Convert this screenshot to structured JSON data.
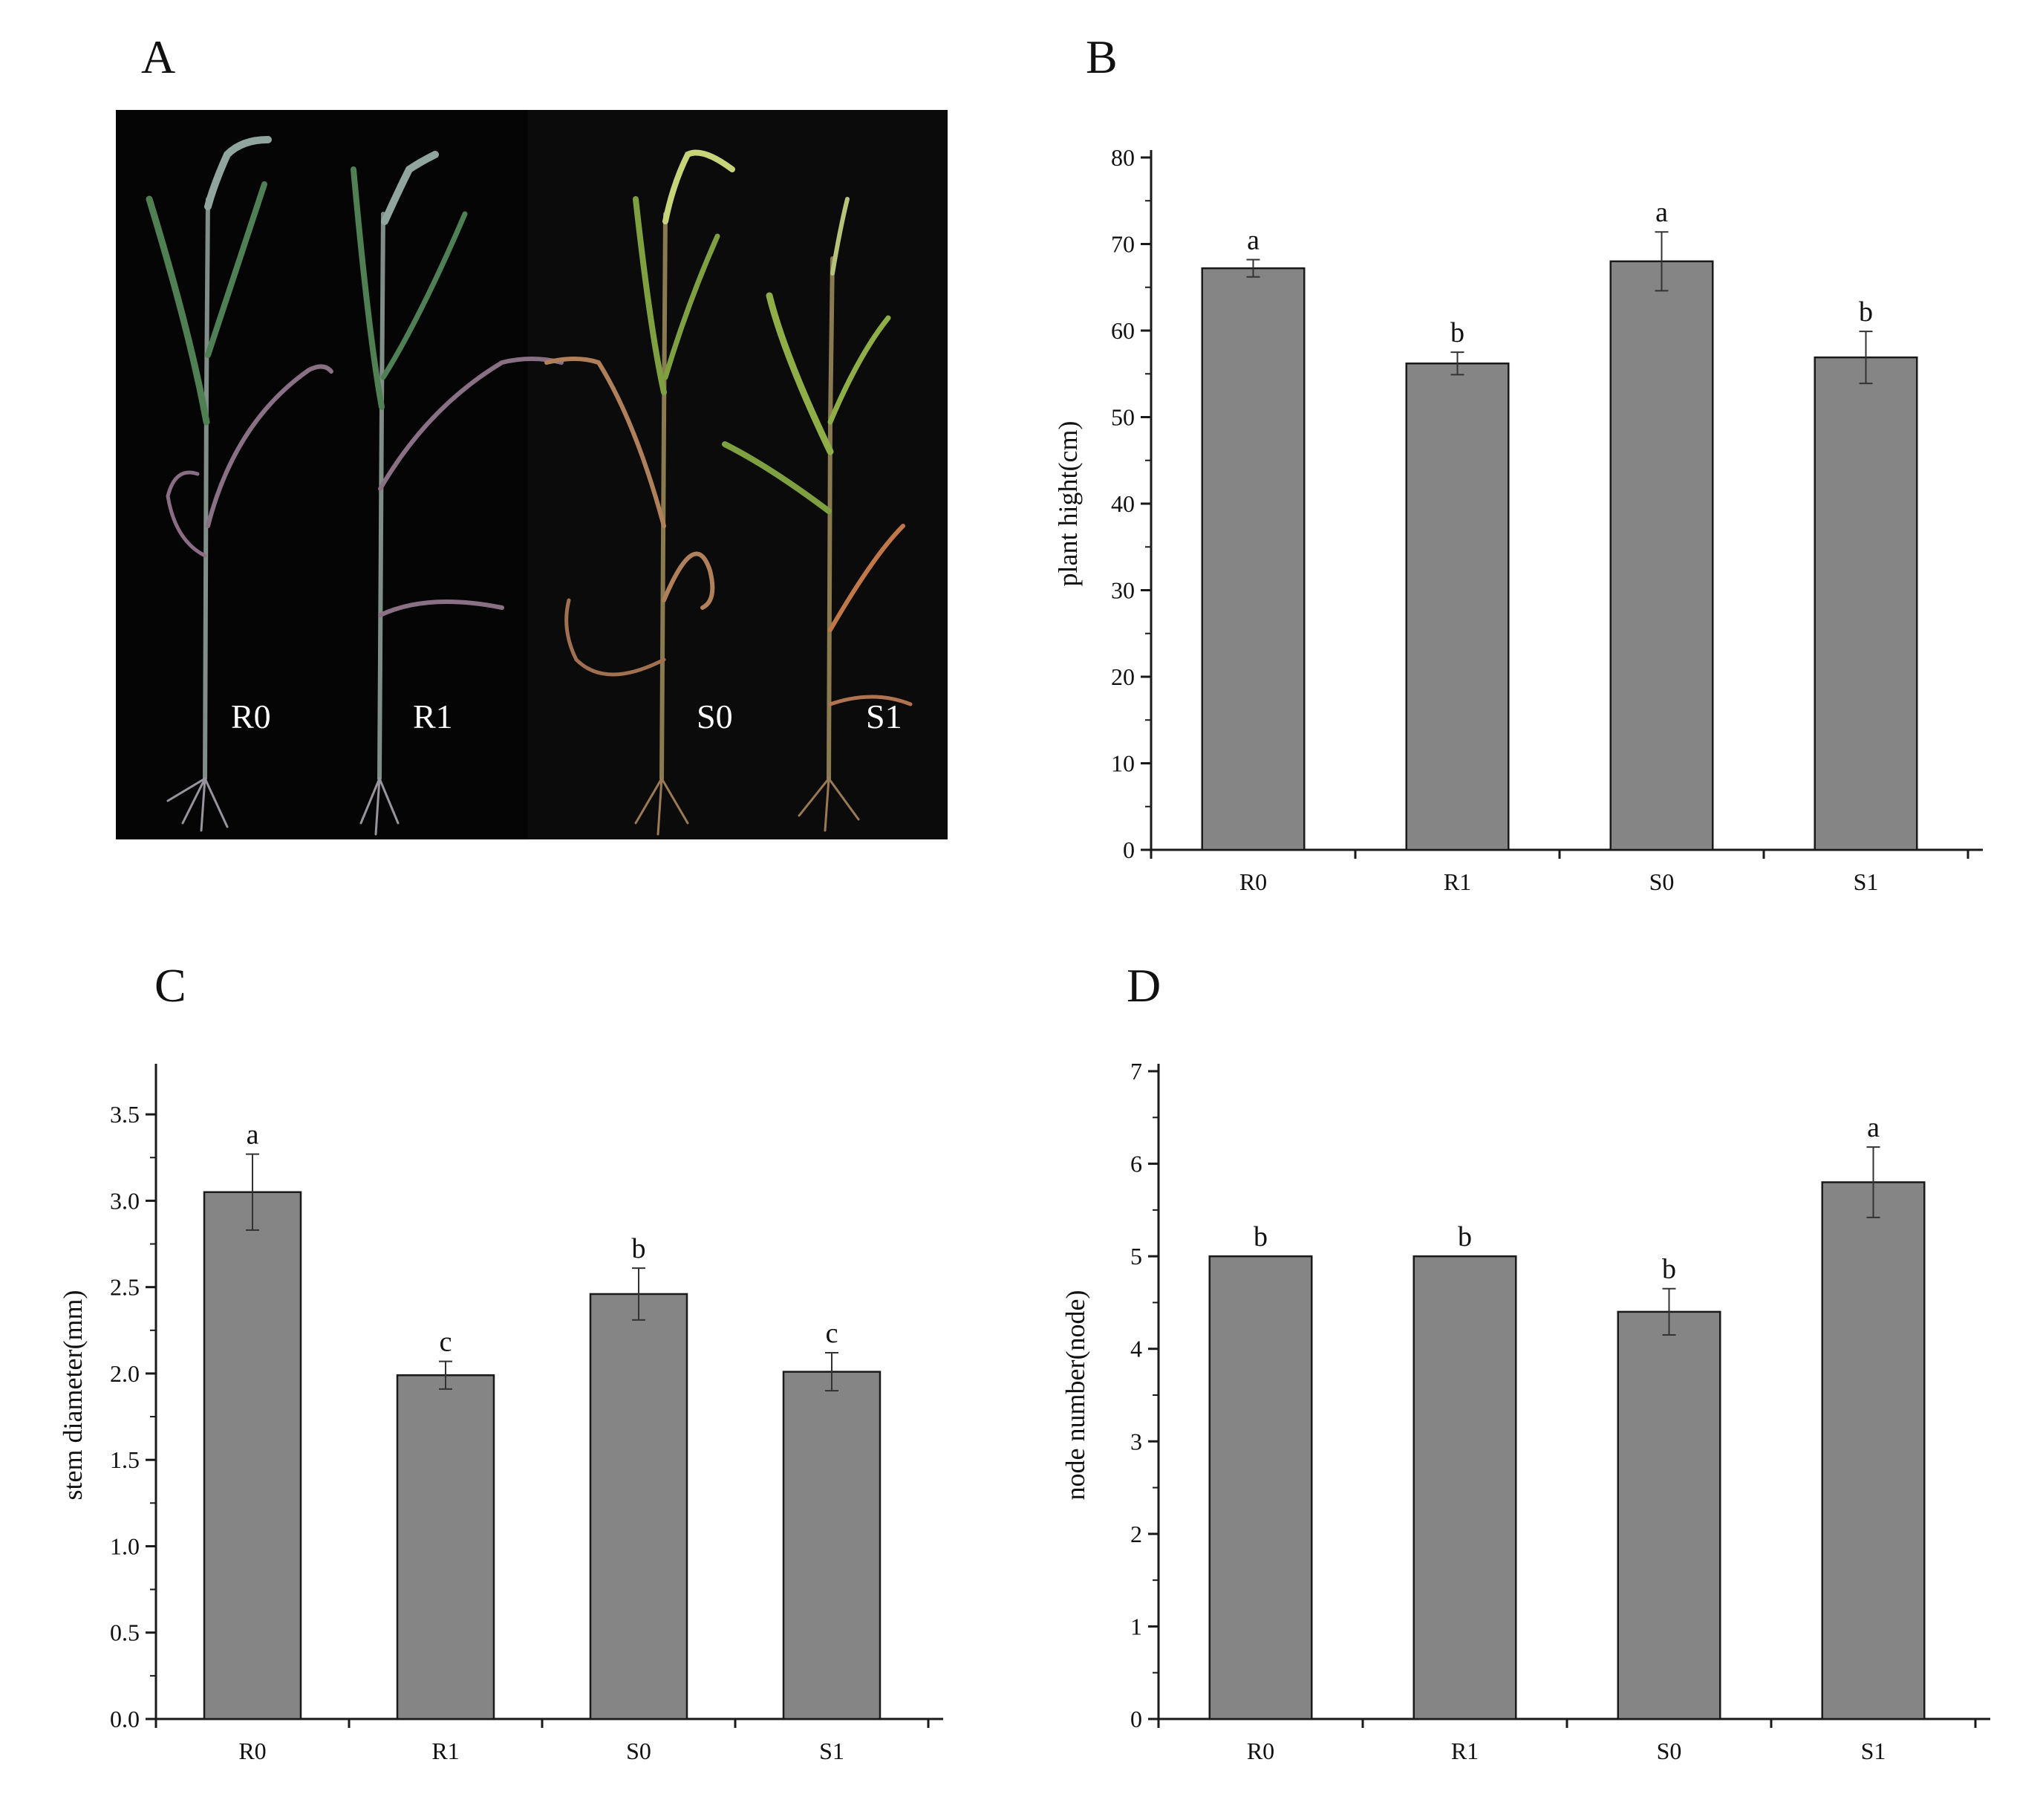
{
  "panels": {
    "a": "A",
    "b": "B",
    "c": "C",
    "d": "D"
  },
  "photo": {
    "labels": [
      "R0",
      "R1",
      "S0",
      "S1"
    ]
  },
  "style": {
    "bar_color": "#858585",
    "bar_stroke": "#1a1a1a",
    "axis_color": "#1a1a1a",
    "photo_background": "#050505"
  },
  "chart_data": [
    {
      "id": "B",
      "type": "bar",
      "categories": [
        "R0",
        "R1",
        "S0",
        "S1"
      ],
      "values": [
        67.2,
        56.2,
        68.0,
        56.9
      ],
      "errors": [
        1.0,
        1.3,
        3.4,
        3.0
      ],
      "sig_letters": [
        "a",
        "b",
        "a",
        "b"
      ],
      "ylabel": "plant hight(cm)",
      "ylim": [
        0,
        80
      ],
      "yticks": [
        0,
        10,
        20,
        30,
        40,
        50,
        60,
        70,
        80
      ],
      "ytick_labels": [
        "0",
        "10",
        "20",
        "30",
        "40",
        "50",
        "60",
        "70",
        "80"
      ]
    },
    {
      "id": "C",
      "type": "bar",
      "categories": [
        "R0",
        "R1",
        "S0",
        "S1"
      ],
      "values": [
        3.05,
        1.99,
        2.46,
        2.01
      ],
      "errors": [
        0.22,
        0.08,
        0.15,
        0.11
      ],
      "sig_letters": [
        "a",
        "c",
        "b",
        "c"
      ],
      "ylabel": "stem diameter(mm)",
      "ylim": [
        0,
        3.75
      ],
      "yticks": [
        0,
        0.5,
        1.0,
        1.5,
        2.0,
        2.5,
        3.0,
        3.5
      ],
      "ytick_labels": [
        "0.0",
        "0.5",
        "1.0",
        "1.5",
        "2.0",
        "2.5",
        "3.0",
        "3.5"
      ]
    },
    {
      "id": "D",
      "type": "bar",
      "categories": [
        "R0",
        "R1",
        "S0",
        "S1"
      ],
      "values": [
        5.0,
        5.0,
        4.4,
        5.8
      ],
      "errors": [
        0,
        0,
        0.25,
        0.38
      ],
      "sig_letters": [
        "b",
        "b",
        "b",
        "a"
      ],
      "ylabel": "node number(node)",
      "ylim": [
        0,
        7
      ],
      "yticks": [
        0,
        1,
        2,
        3,
        4,
        5,
        6,
        7
      ],
      "ytick_labels": [
        "0",
        "1",
        "2",
        "3",
        "4",
        "5",
        "6",
        "7"
      ]
    }
  ]
}
